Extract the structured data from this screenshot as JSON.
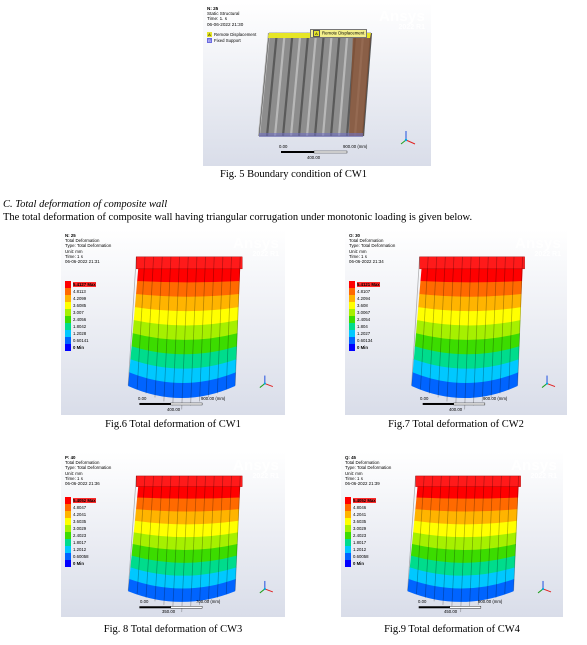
{
  "fig5": {
    "header": [
      "N: 25",
      "Static Structural",
      "Time: 1. s",
      "06-06-2022 21:30"
    ],
    "brand": "Ansys",
    "version": "2022 R1",
    "bc_items": [
      {
        "letter": "A",
        "label": "Remote Displacement",
        "color": "#e6e62a"
      },
      {
        "letter": "B",
        "label": "Fixed Support",
        "color": "#6a6ae0"
      }
    ],
    "tag_a": "Remote Displacement",
    "scale_left": "0.00",
    "scale_right": "900.00 (mm)",
    "scale_mid": "400.00",
    "caption": "Fig. 5 Boundary condition of CW1"
  },
  "section": {
    "title": "C.  Total deformation of composite wall",
    "body": "The total deformation of composite wall having triangular corrugation under monotonic loading is given below."
  },
  "legend_colors": [
    "#ff0000",
    "#ff6a00",
    "#ffb400",
    "#ffff00",
    "#a6f000",
    "#3cdc00",
    "#00dc8c",
    "#00c8ff",
    "#0064ff",
    "#0000ff"
  ],
  "figs": [
    {
      "header": [
        "N: 25",
        "Total Deformation",
        "Type: Total Deformation",
        "Unit: mm",
        "Time: 1 s",
        "06-06-2022 21:31"
      ],
      "brand": "Ansys",
      "version": "2022 R1",
      "legend": [
        "5.4127 Max",
        "4.8113",
        "4.2099",
        "3.6085",
        "3.007",
        "2.4056",
        "1.8042",
        "1.2028",
        "0.60141",
        "0 Min"
      ],
      "scale_left": "0.00",
      "scale_right": "900.00 (mm)",
      "scale_mid": "400.00",
      "caption": "Fig.6 Total deformation of CW1"
    },
    {
      "header": [
        "O: 30",
        "Total Deformation",
        "Type: Total Deformation",
        "Unit: mm",
        "Time: 1 s",
        "06-06-2022 21:34"
      ],
      "brand": "Ansys",
      "version": "2022 R1",
      "legend": [
        "5.4121 Max",
        "4.8107",
        "4.2094",
        "3.608",
        "3.0067",
        "2.4054",
        "1.804",
        "1.2027",
        "0.60134",
        "0 Min"
      ],
      "scale_left": "0.00",
      "scale_right": "900.00 (mm)",
      "scale_mid": "400.00",
      "caption": "Fig.7 Total deformation of CW2"
    },
    {
      "header": [
        "P: 40",
        "Total Deformation",
        "Type: Total Deformation",
        "Unit: mm",
        "Time: 1 s",
        "06-06-2022 21:36"
      ],
      "brand": "Ansys",
      "version": "2022 R1",
      "legend": [
        "5.4052 Max",
        "4.8047",
        "4.2041",
        "3.6035",
        "3.0029",
        "2.4023",
        "1.8017",
        "1.2012",
        "0.60058",
        "0 Min"
      ],
      "scale_left": "0.00",
      "scale_right": "700.00 (mm)",
      "scale_mid": "350.00",
      "caption": "Fig. 8 Total deformation of CW3"
    },
    {
      "header": [
        "Q: 45",
        "Total Deformation",
        "Type: Total Deformation",
        "Unit: mm",
        "Time: 1 s",
        "06-06-2022 21:39"
      ],
      "brand": "Ansys",
      "version": "2022 R1",
      "legend": [
        "5.4052 Max",
        "4.8046",
        "4.2041",
        "3.6035",
        "3.0029",
        "2.4023",
        "1.8017",
        "1.2012",
        "0.60058",
        "0 Min"
      ],
      "scale_left": "0.00",
      "scale_right": "900.00 (mm)",
      "scale_mid": "450.00",
      "caption": "Fig.9 Total deformation of CW4"
    }
  ]
}
